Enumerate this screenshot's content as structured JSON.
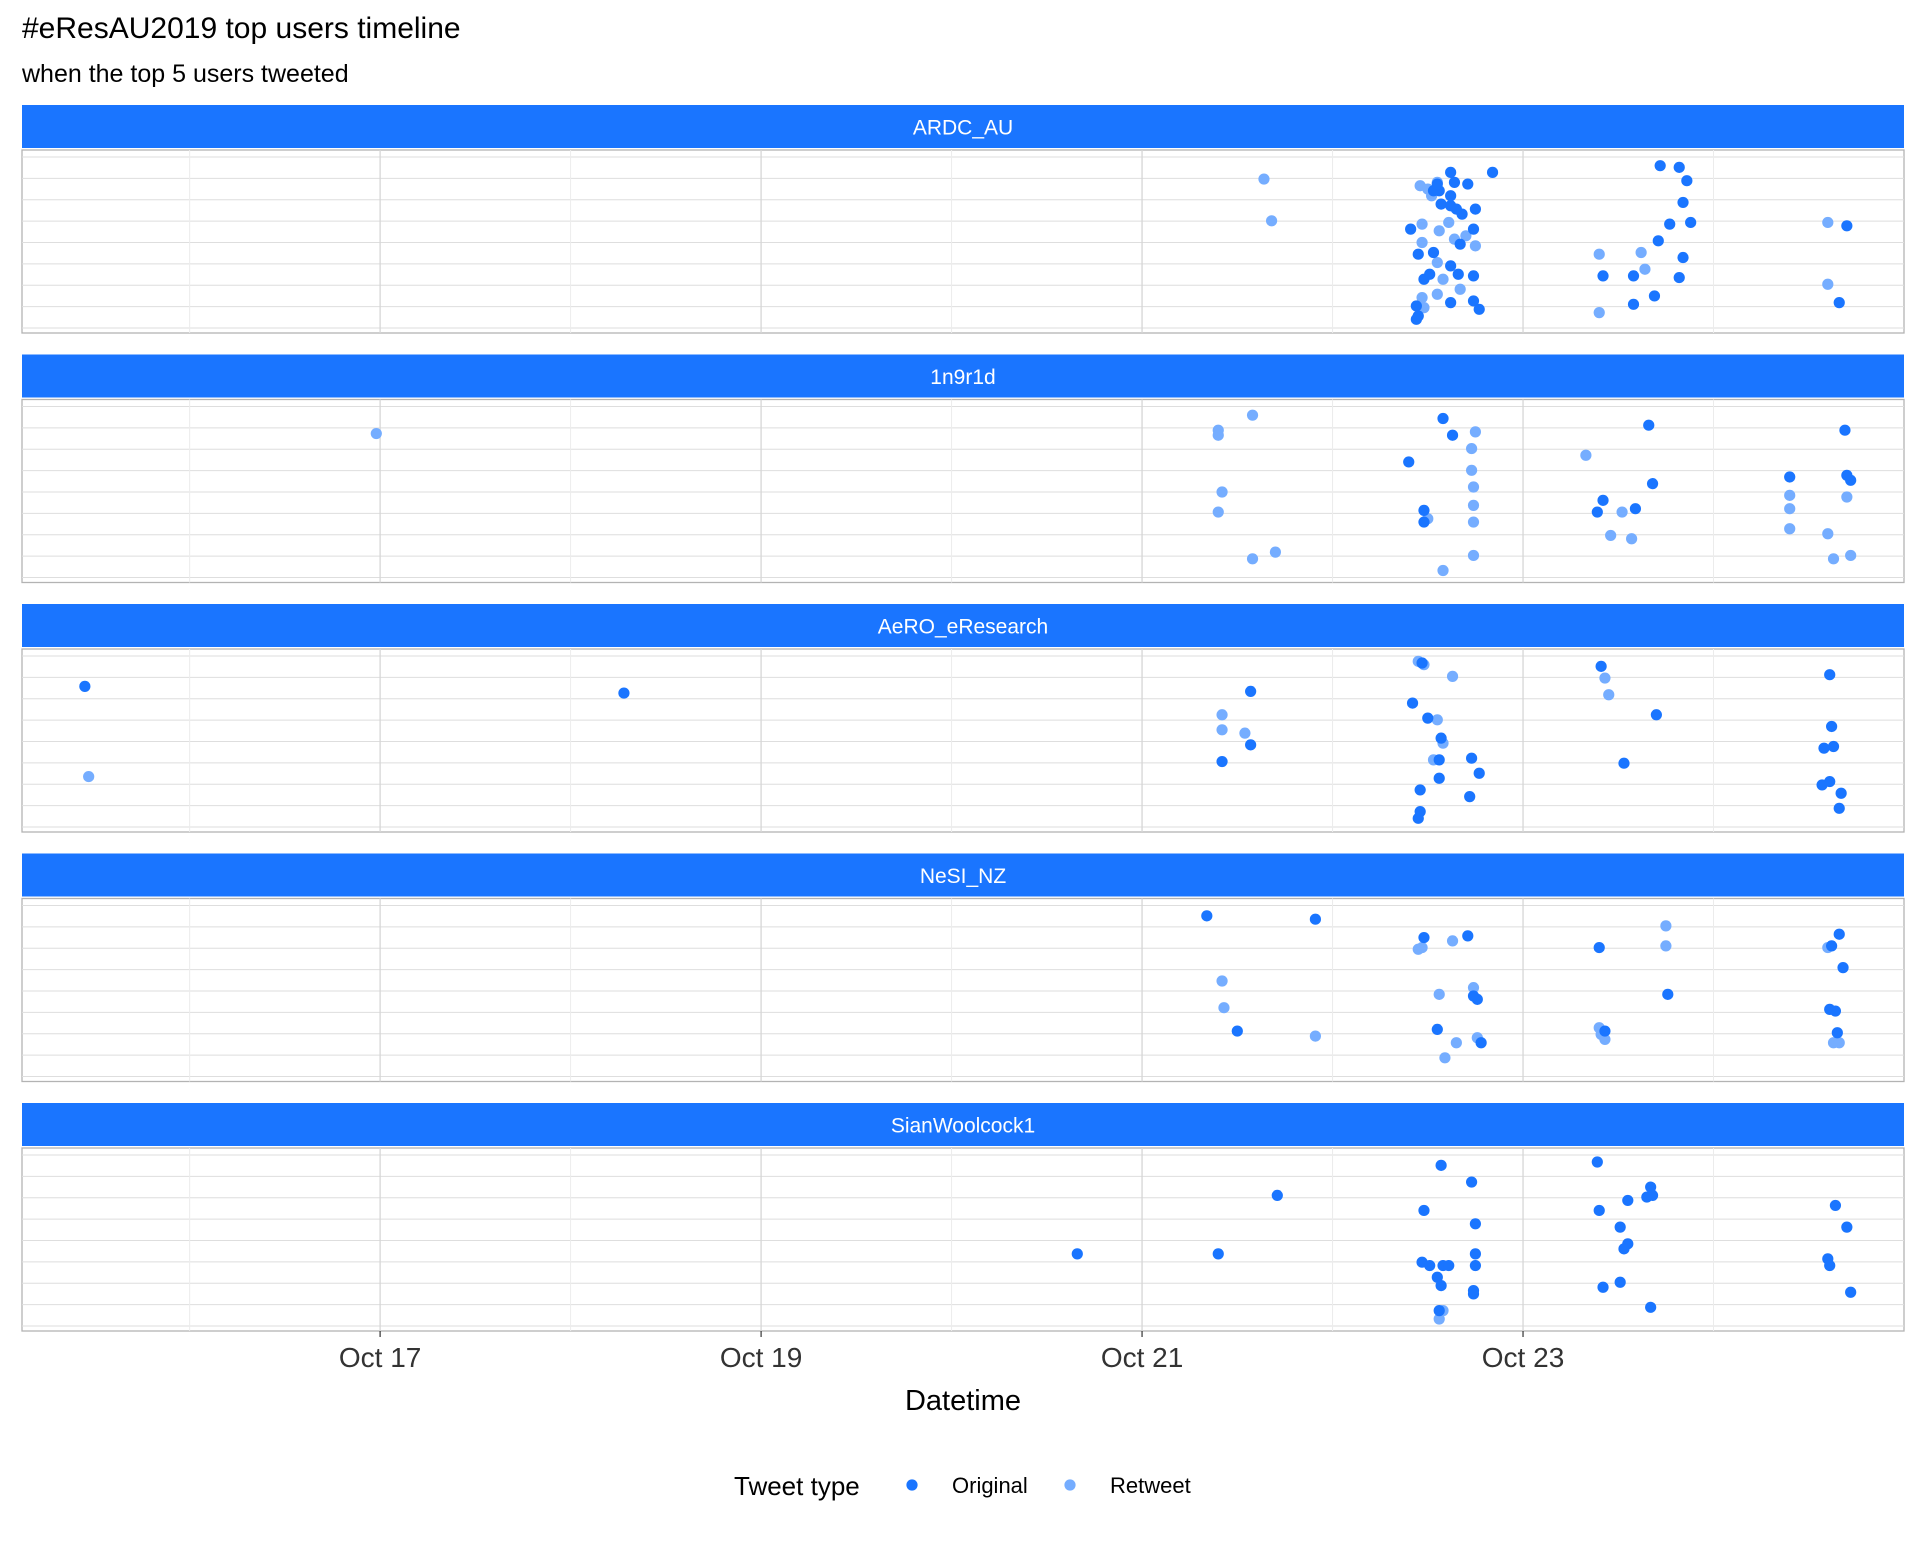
{
  "chart_data": {
    "type": "scatter",
    "title": "#eResAU2019 top users timeline",
    "subtitle": "when the top 5 users tweeted",
    "xlabel": "Datetime",
    "ylabel": "",
    "x_unit": "days in October 2019 (day-of-month, fractional)",
    "xlim": [
      15.12,
      25.0
    ],
    "x_ticks": [
      {
        "value": 17,
        "label": "Oct 17"
      },
      {
        "value": 19,
        "label": "Oct 19"
      },
      {
        "value": 21,
        "label": "Oct 21"
      },
      {
        "value": 23,
        "label": "Oct 23"
      }
    ],
    "grid": true,
    "facet_strip_color": "#1a75ff",
    "legend": {
      "title": "Tweet type",
      "position": "bottom",
      "entries": [
        {
          "label": "Original",
          "color": "#1a75ff"
        },
        {
          "label": "Retweet",
          "color": "#75adff"
        }
      ]
    },
    "panels": [
      {
        "user": "ARDC_AU",
        "original": [
          [
            22.45,
            0.06
          ],
          [
            22.62,
            0.14
          ],
          [
            22.77,
            0.1
          ],
          [
            22.84,
            0.92
          ],
          [
            22.44,
            0.04
          ],
          [
            22.62,
            0.92
          ],
          [
            22.57,
            0.73
          ],
          [
            22.62,
            0.72
          ],
          [
            22.68,
            0.67
          ],
          [
            22.75,
            0.7
          ],
          [
            22.45,
            0.43
          ],
          [
            22.65,
            0.7
          ],
          [
            22.71,
            0.85
          ],
          [
            22.56,
            0.81
          ],
          [
            22.53,
            0.81
          ],
          [
            22.48,
            0.28
          ],
          [
            22.62,
            0.36
          ],
          [
            22.66,
            0.31
          ],
          [
            22.74,
            0.3
          ],
          [
            22.41,
            0.58
          ],
          [
            22.55,
            0.85
          ],
          [
            22.53,
            0.44
          ],
          [
            22.67,
            0.49
          ],
          [
            22.74,
            0.58
          ],
          [
            22.62,
            0.78
          ],
          [
            22.51,
            0.31
          ],
          [
            22.44,
            0.12
          ],
          [
            22.64,
            0.86
          ],
          [
            22.74,
            0.15
          ],
          [
            23.42,
            0.3
          ],
          [
            23.58,
            0.3
          ],
          [
            23.58,
            0.13
          ],
          [
            23.69,
            0.18
          ],
          [
            23.72,
            0.96
          ],
          [
            23.82,
            0.95
          ],
          [
            23.86,
            0.87
          ],
          [
            23.84,
            0.74
          ],
          [
            23.88,
            0.62
          ],
          [
            23.77,
            0.61
          ],
          [
            23.84,
            0.41
          ],
          [
            23.71,
            0.51
          ],
          [
            23.82,
            0.29
          ],
          [
            24.66,
            0.14
          ],
          [
            24.7,
            0.6
          ]
        ],
        "retweet": [
          [
            21.64,
            0.88
          ],
          [
            21.68,
            0.63
          ],
          [
            22.55,
            0.86
          ],
          [
            22.46,
            0.84
          ],
          [
            22.5,
            0.82
          ],
          [
            22.52,
            0.78
          ],
          [
            22.47,
            0.61
          ],
          [
            22.56,
            0.57
          ],
          [
            22.61,
            0.62
          ],
          [
            22.7,
            0.54
          ],
          [
            22.64,
            0.52
          ],
          [
            22.75,
            0.48
          ],
          [
            22.47,
            0.5
          ],
          [
            22.55,
            0.38
          ],
          [
            22.58,
            0.28
          ],
          [
            22.67,
            0.22
          ],
          [
            22.55,
            0.19
          ],
          [
            22.47,
            0.17
          ],
          [
            22.48,
            0.11
          ],
          [
            23.4,
            0.43
          ],
          [
            23.62,
            0.44
          ],
          [
            23.64,
            0.34
          ],
          [
            23.4,
            0.08
          ],
          [
            24.6,
            0.62
          ],
          [
            24.6,
            0.25
          ]
        ]
      },
      {
        "user": "1n9r1d",
        "original": [
          [
            22.4,
            0.68
          ],
          [
            22.58,
            0.94
          ],
          [
            22.63,
            0.84
          ],
          [
            23.42,
            0.45
          ],
          [
            23.39,
            0.38
          ],
          [
            23.59,
            0.4
          ],
          [
            23.66,
            0.9
          ],
          [
            23.68,
            0.55
          ],
          [
            24.4,
            0.59
          ],
          [
            24.7,
            0.6
          ],
          [
            24.72,
            0.57
          ],
          [
            24.69,
            0.87
          ],
          [
            22.48,
            0.32
          ],
          [
            22.48,
            0.39
          ]
        ],
        "retweet": [
          [
            16.98,
            0.85
          ],
          [
            21.4,
            0.87
          ],
          [
            21.4,
            0.84
          ],
          [
            21.42,
            0.5
          ],
          [
            21.4,
            0.38
          ],
          [
            21.58,
            0.96
          ],
          [
            21.58,
            0.1
          ],
          [
            21.7,
            0.14
          ],
          [
            22.75,
            0.86
          ],
          [
            22.73,
            0.76
          ],
          [
            22.73,
            0.63
          ],
          [
            22.74,
            0.53
          ],
          [
            22.74,
            0.42
          ],
          [
            22.74,
            0.32
          ],
          [
            22.74,
            0.12
          ],
          [
            22.58,
            0.03
          ],
          [
            22.5,
            0.34
          ],
          [
            23.33,
            0.72
          ],
          [
            23.52,
            0.38
          ],
          [
            23.57,
            0.22
          ],
          [
            23.46,
            0.24
          ],
          [
            24.4,
            0.48
          ],
          [
            24.4,
            0.4
          ],
          [
            24.4,
            0.28
          ],
          [
            24.6,
            0.25
          ],
          [
            24.7,
            0.47
          ],
          [
            24.72,
            0.12
          ],
          [
            24.63,
            0.1
          ]
        ]
      },
      {
        "user": "AeRO_eResearch",
        "original": [
          [
            15.45,
            0.83
          ],
          [
            18.28,
            0.79
          ],
          [
            21.57,
            0.8
          ],
          [
            21.42,
            0.38
          ],
          [
            21.57,
            0.48
          ],
          [
            22.47,
            0.97
          ],
          [
            22.42,
            0.73
          ],
          [
            22.5,
            0.64
          ],
          [
            22.57,
            0.52
          ],
          [
            22.56,
            0.39
          ],
          [
            22.56,
            0.28
          ],
          [
            22.73,
            0.4
          ],
          [
            22.77,
            0.31
          ],
          [
            22.46,
            0.21
          ],
          [
            22.46,
            0.08
          ],
          [
            22.72,
            0.17
          ],
          [
            22.45,
            0.04
          ],
          [
            23.41,
            0.95
          ],
          [
            23.53,
            0.37
          ],
          [
            23.7,
            0.66
          ],
          [
            24.61,
            0.9
          ],
          [
            24.62,
            0.59
          ],
          [
            24.58,
            0.46
          ],
          [
            24.63,
            0.47
          ],
          [
            24.57,
            0.24
          ],
          [
            24.61,
            0.26
          ],
          [
            24.67,
            0.19
          ],
          [
            24.66,
            0.1
          ]
        ],
        "retweet": [
          [
            15.47,
            0.29
          ],
          [
            21.42,
            0.66
          ],
          [
            21.42,
            0.57
          ],
          [
            21.54,
            0.55
          ],
          [
            22.45,
            0.98
          ],
          [
            22.48,
            0.96
          ],
          [
            22.63,
            0.89
          ],
          [
            22.55,
            0.63
          ],
          [
            22.58,
            0.49
          ],
          [
            22.53,
            0.39
          ],
          [
            23.43,
            0.88
          ],
          [
            23.45,
            0.78
          ]
        ]
      },
      {
        "user": "NeSI_NZ",
        "original": [
          [
            21.34,
            0.95
          ],
          [
            21.91,
            0.93
          ],
          [
            22.48,
            0.82
          ],
          [
            22.71,
            0.83
          ],
          [
            23.4,
            0.76
          ],
          [
            22.55,
            0.27
          ],
          [
            22.76,
            0.45
          ],
          [
            22.74,
            0.47
          ],
          [
            22.78,
            0.19
          ],
          [
            21.5,
            0.26
          ],
          [
            23.76,
            0.48
          ],
          [
            23.43,
            0.26
          ],
          [
            24.62,
            0.77
          ],
          [
            24.66,
            0.84
          ],
          [
            24.68,
            0.64
          ],
          [
            24.61,
            0.39
          ],
          [
            24.64,
            0.38
          ],
          [
            24.65,
            0.25
          ]
        ],
        "retweet": [
          [
            21.42,
            0.56
          ],
          [
            21.43,
            0.4
          ],
          [
            21.91,
            0.23
          ],
          [
            22.45,
            0.75
          ],
          [
            22.47,
            0.76
          ],
          [
            22.63,
            0.8
          ],
          [
            22.56,
            0.48
          ],
          [
            22.74,
            0.52
          ],
          [
            22.76,
            0.22
          ],
          [
            22.65,
            0.19
          ],
          [
            22.59,
            0.1
          ],
          [
            23.4,
            0.28
          ],
          [
            23.41,
            0.24
          ],
          [
            23.43,
            0.21
          ],
          [
            23.75,
            0.89
          ],
          [
            23.75,
            0.77
          ],
          [
            24.6,
            0.76
          ],
          [
            24.63,
            0.19
          ],
          [
            24.66,
            0.19
          ]
        ]
      },
      {
        "user": "SianWoolcock1",
        "original": [
          [
            20.66,
            0.42
          ],
          [
            21.4,
            0.42
          ],
          [
            21.71,
            0.77
          ],
          [
            22.57,
            0.95
          ],
          [
            22.48,
            0.68
          ],
          [
            22.73,
            0.85
          ],
          [
            22.75,
            0.6
          ],
          [
            22.75,
            0.42
          ],
          [
            22.75,
            0.35
          ],
          [
            22.47,
            0.37
          ],
          [
            22.51,
            0.35
          ],
          [
            22.55,
            0.28
          ],
          [
            22.58,
            0.35
          ],
          [
            22.61,
            0.35
          ],
          [
            22.57,
            0.23
          ],
          [
            22.74,
            0.2
          ],
          [
            22.74,
            0.18
          ],
          [
            23.39,
            0.97
          ],
          [
            23.55,
            0.74
          ],
          [
            23.4,
            0.68
          ],
          [
            23.51,
            0.58
          ],
          [
            23.55,
            0.48
          ],
          [
            23.53,
            0.45
          ],
          [
            23.65,
            0.76
          ],
          [
            23.67,
            0.82
          ],
          [
            23.68,
            0.77
          ],
          [
            23.51,
            0.25
          ],
          [
            23.42,
            0.22
          ],
          [
            23.67,
            0.1
          ],
          [
            24.6,
            0.39
          ],
          [
            24.61,
            0.35
          ],
          [
            24.64,
            0.71
          ],
          [
            24.7,
            0.58
          ],
          [
            24.72,
            0.19
          ],
          [
            22.56,
            0.08
          ]
        ],
        "retweet": [
          [
            22.58,
            0.08
          ],
          [
            22.56,
            0.03
          ]
        ]
      }
    ]
  }
}
